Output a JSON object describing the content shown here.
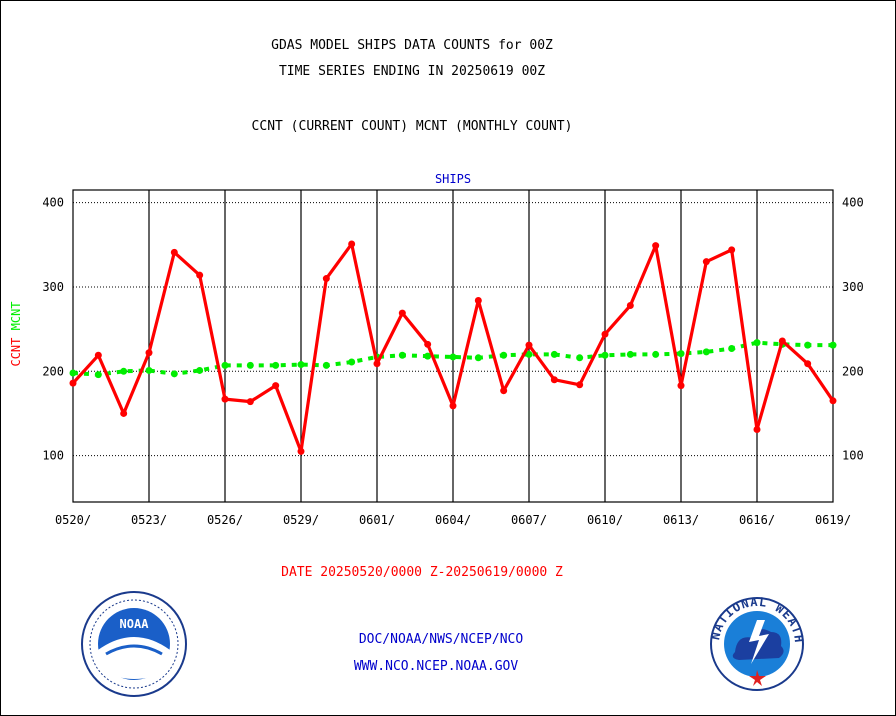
{
  "title_line1": "GDAS MODEL SHIPS DATA COUNTS for 00Z",
  "title_line2": "TIME SERIES ENDING IN 20250619 00Z",
  "subtitle": "CCNT (CURRENT COUNT) MCNT (MONTHLY COUNT)",
  "date_range": "DATE 20250520/0000 Z-20250619/0000 Z",
  "footer": {
    "org": "DOC/NOAA/NWS/NCEP/NCO",
    "website": "WWW.NCO.NCEP.NOAA.GOV"
  },
  "logos": {
    "noaa_text": "NOAA",
    "nws_text": "NATIONAL WEATHER SERVICE"
  },
  "colors": {
    "ccnt": "#ff0000",
    "mcnt": "#00ee00",
    "panel_title": "#0000cc"
  },
  "chart_data": {
    "type": "line",
    "title": "SHIPS",
    "ylabel_parts": [
      {
        "text": "CCNT",
        "color": "#ff0000"
      },
      {
        "text": "MCNT",
        "color": "#00ee00"
      }
    ],
    "ylim": [
      45,
      415
    ],
    "yticks": [
      100,
      200,
      300,
      400
    ],
    "xlim": [
      0,
      30
    ],
    "x_ticks": [
      {
        "x": 0,
        "label": "0520/"
      },
      {
        "x": 3,
        "label": "0523/"
      },
      {
        "x": 6,
        "label": "0526/"
      },
      {
        "x": 9,
        "label": "0529/"
      },
      {
        "x": 12,
        "label": "0601/"
      },
      {
        "x": 15,
        "label": "0604/"
      },
      {
        "x": 18,
        "label": "0607/"
      },
      {
        "x": 21,
        "label": "0610/"
      },
      {
        "x": 24,
        "label": "0613/"
      },
      {
        "x": 27,
        "label": "0616/"
      },
      {
        "x": 30,
        "label": "0619/"
      }
    ],
    "grid": true,
    "series": [
      {
        "name": "CCNT",
        "color": "#ff0000",
        "values": [
          186,
          219,
          150,
          222,
          341,
          314,
          167,
          164,
          183,
          105,
          310,
          351,
          209,
          269,
          232,
          159,
          284,
          177,
          231,
          190,
          184,
          244,
          278,
          349,
          183,
          330,
          344,
          131,
          236,
          209,
          165
        ]
      },
      {
        "name": "MCNT",
        "color": "#00ee00",
        "values": [
          198,
          196,
          200,
          201,
          197,
          201,
          207,
          207,
          207,
          208,
          207,
          211,
          217,
          219,
          218,
          217,
          216,
          219,
          220,
          220,
          216,
          219,
          220,
          220,
          221,
          223,
          227,
          234,
          232,
          231,
          231
        ]
      }
    ]
  }
}
